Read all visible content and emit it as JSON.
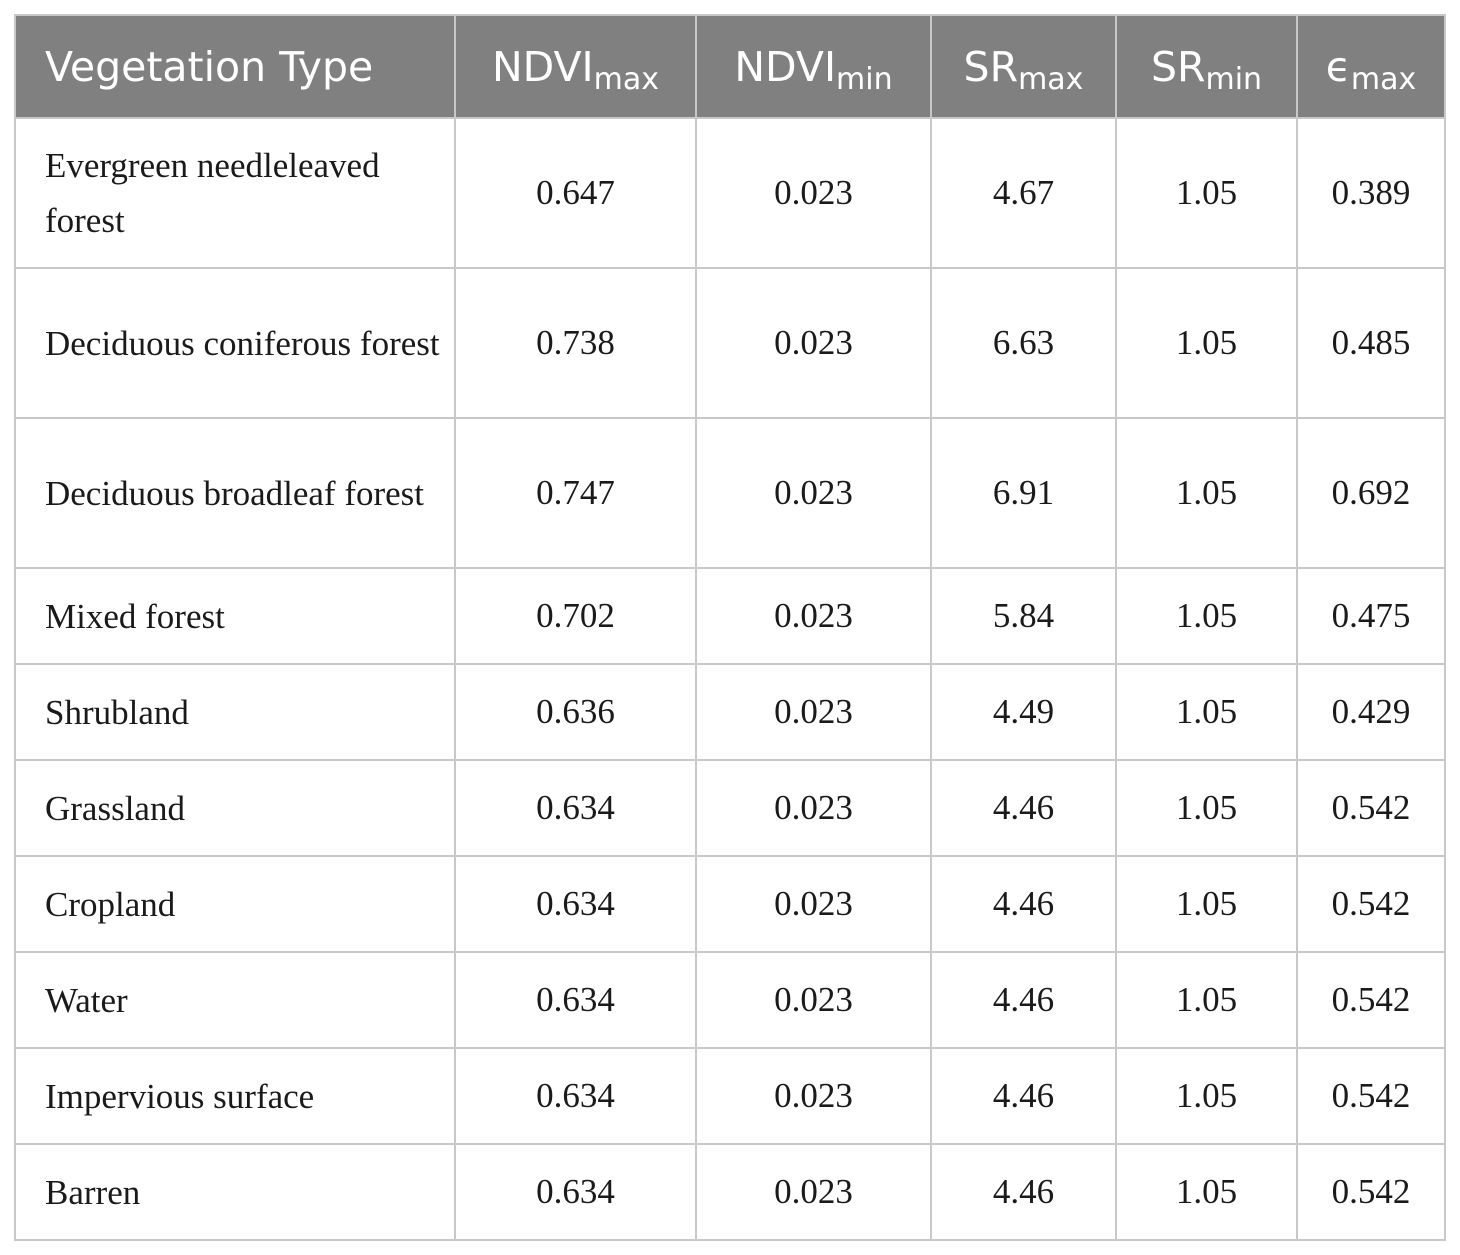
{
  "header": {
    "col0": "Vegetation Type",
    "col1": {
      "base": "NDVI",
      "sub": "max"
    },
    "col2": {
      "base": "NDVI",
      "sub": "min"
    },
    "col3": {
      "base": "SR",
      "sub": "max"
    },
    "col4": {
      "base": "SR",
      "sub": "min"
    },
    "col5": {
      "base": "ϵ",
      "sub": "max"
    }
  },
  "rows": [
    {
      "type": "Evergreen needleleaved forest",
      "ndvi_max": "0.647",
      "ndvi_min": "0.023",
      "sr_max": "4.67",
      "sr_min": "1.05",
      "eps_max": "0.389"
    },
    {
      "type": "Deciduous coniferous forest",
      "ndvi_max": "0.738",
      "ndvi_min": "0.023",
      "sr_max": "6.63",
      "sr_min": "1.05",
      "eps_max": "0.485"
    },
    {
      "type": "Deciduous broadleaf forest",
      "ndvi_max": "0.747",
      "ndvi_min": "0.023",
      "sr_max": "6.91",
      "sr_min": "1.05",
      "eps_max": "0.692"
    },
    {
      "type": "Mixed forest",
      "ndvi_max": "0.702",
      "ndvi_min": "0.023",
      "sr_max": "5.84",
      "sr_min": "1.05",
      "eps_max": "0.475"
    },
    {
      "type": "Shrubland",
      "ndvi_max": "0.636",
      "ndvi_min": "0.023",
      "sr_max": "4.49",
      "sr_min": "1.05",
      "eps_max": "0.429"
    },
    {
      "type": "Grassland",
      "ndvi_max": "0.634",
      "ndvi_min": "0.023",
      "sr_max": "4.46",
      "sr_min": "1.05",
      "eps_max": "0.542"
    },
    {
      "type": "Cropland",
      "ndvi_max": "0.634",
      "ndvi_min": "0.023",
      "sr_max": "4.46",
      "sr_min": "1.05",
      "eps_max": "0.542"
    },
    {
      "type": "Water",
      "ndvi_max": "0.634",
      "ndvi_min": "0.023",
      "sr_max": "4.46",
      "sr_min": "1.05",
      "eps_max": "0.542"
    },
    {
      "type": "Impervious surface",
      "ndvi_max": "0.634",
      "ndvi_min": "0.023",
      "sr_max": "4.46",
      "sr_min": "1.05",
      "eps_max": "0.542"
    },
    {
      "type": "Barren",
      "ndvi_max": "0.634",
      "ndvi_min": "0.023",
      "sr_max": "4.46",
      "sr_min": "1.05",
      "eps_max": "0.542"
    }
  ],
  "colors": {
    "header_bg": "#808080",
    "header_text": "#ffffff",
    "border": "#c8c8c8"
  }
}
